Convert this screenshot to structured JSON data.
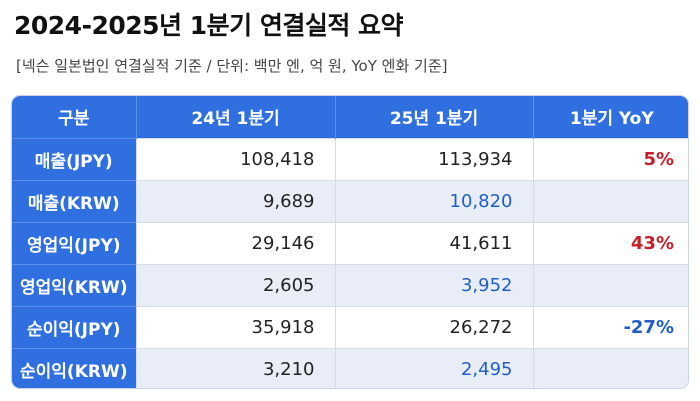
{
  "title": "2024-2025년 1분기 연결실적 요약",
  "subtitle": "[넥슨 일본법인 연결실적 기준 / 단위: 백만 엔, 억 원, YoY 엔화 기준]",
  "table": {
    "headers": [
      "구분",
      "24년 1분기",
      "25년 1분기",
      "1분기 YoY"
    ],
    "rows": [
      {
        "label": "매출(JPY)",
        "q1_24": "108,418",
        "q1_25": "113,934",
        "yoy": "5%"
      },
      {
        "label": "매출(KRW)",
        "q1_24": "9,689",
        "q1_25": "10,820",
        "yoy": ""
      },
      {
        "label": "영업익(JPY)",
        "q1_24": "29,146",
        "q1_25": "41,611",
        "yoy": "43%"
      },
      {
        "label": "영업익(KRW)",
        "q1_24": "2,605",
        "q1_25": "3,952",
        "yoy": ""
      },
      {
        "label": "순이익(JPY)",
        "q1_24": "35,918",
        "q1_25": "26,272",
        "yoy": "-27%"
      },
      {
        "label": "순이익(KRW)",
        "q1_24": "3,210",
        "q1_25": "2,495",
        "yoy": ""
      }
    ]
  },
  "colors": {
    "header_blue": "#2f6fe0",
    "krw_blue": "#1f5fc4",
    "positive_red": "#c81e2a",
    "negative_blue": "#1f5fc4",
    "alt_row": "#e8edf7"
  }
}
